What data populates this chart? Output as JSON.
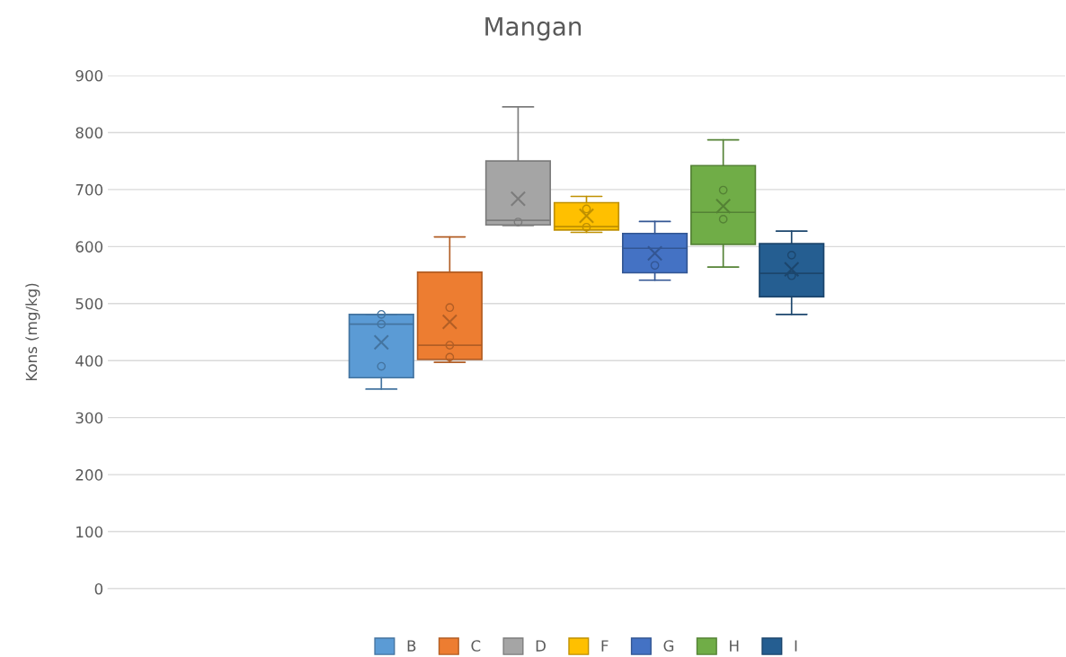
{
  "chart_data": {
    "type": "box",
    "title": "Mangan",
    "ylabel": "Kons (mg/kg)",
    "categories": [
      null
    ],
    "series": [
      {
        "name": "B",
        "color": "#5b9bd5",
        "boxes": [
          {
            "low": 350,
            "q1": 370,
            "median": 464,
            "q3": 481,
            "high": 481,
            "mean": 432,
            "outliers": [
              481,
              464,
              390
            ]
          }
        ]
      },
      {
        "name": "C",
        "color": "#ed7d31",
        "boxes": [
          {
            "low": 397,
            "q1": 402,
            "median": 427,
            "q3": 555,
            "high": 617,
            "mean": 468,
            "outliers": [
              493,
              427,
              406
            ]
          }
        ]
      },
      {
        "name": "D",
        "color": "#a5a5a5",
        "boxes": [
          {
            "low": 637,
            "q1": 638,
            "median": 646,
            "q3": 750,
            "high": 845,
            "mean": 684,
            "outliers": [
              643
            ]
          }
        ]
      },
      {
        "name": "F",
        "color": "#ffc000",
        "boxes": [
          {
            "low": 625,
            "q1": 629,
            "median": 635,
            "q3": 677,
            "high": 688,
            "mean": 654,
            "outliers": [
              666,
              634
            ]
          }
        ]
      },
      {
        "name": "G",
        "color": "#4472c4",
        "boxes": [
          {
            "low": 541,
            "q1": 554,
            "median": 597,
            "q3": 623,
            "high": 644,
            "mean": 588,
            "outliers": [
              567
            ]
          }
        ]
      },
      {
        "name": "H",
        "color": "#70ad47",
        "boxes": [
          {
            "low": 564,
            "q1": 604,
            "median": 660,
            "q3": 742,
            "high": 787,
            "mean": 671,
            "outliers": [
              699,
              648
            ]
          }
        ]
      },
      {
        "name": "I",
        "color": "#255e91",
        "boxes": [
          {
            "low": 481,
            "q1": 512,
            "median": 553,
            "q3": 605,
            "high": 627,
            "mean": 560,
            "outliers": [
              585,
              549
            ]
          }
        ]
      }
    ],
    "ylim": [
      0,
      900
    ],
    "yticks": [
      0,
      100,
      200,
      300,
      400,
      500,
      600,
      700,
      800,
      900
    ],
    "grid": "y",
    "legend": "bottom"
  }
}
